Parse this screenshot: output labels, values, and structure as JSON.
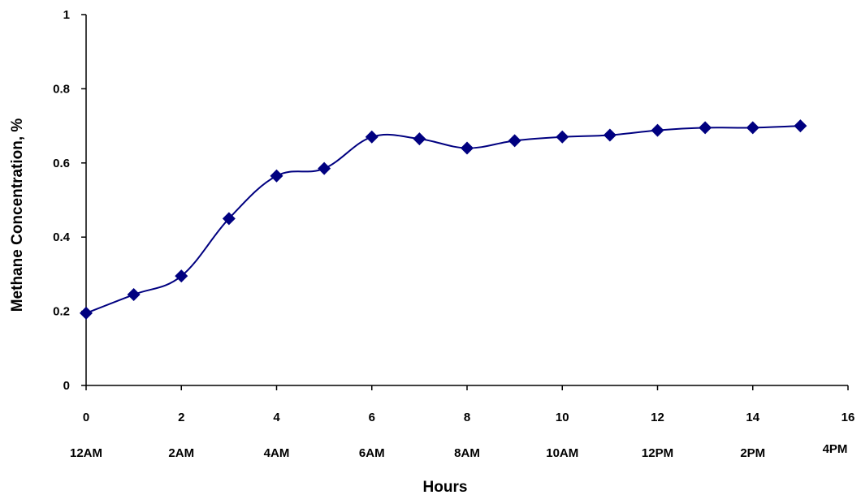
{
  "chart_data": {
    "type": "line",
    "xlabel": "Hours",
    "ylabel": "Methane Concentration, %",
    "xlim": [
      0,
      16
    ],
    "ylim": [
      0,
      1
    ],
    "x_ticks": [
      "0",
      "2",
      "4",
      "6",
      "8",
      "10",
      "12",
      "14",
      "16"
    ],
    "y_ticks": [
      "0",
      "0.2",
      "0.4",
      "0.6",
      "0.8",
      "1"
    ],
    "time_labels": [
      "12AM",
      "2AM",
      "4AM",
      "6AM",
      "8AM",
      "10AM",
      "12PM",
      "2PM",
      "4PM"
    ],
    "grid": false,
    "legend": "none",
    "series": [
      {
        "color": "#000080",
        "marker": "diamond",
        "smooth": true,
        "x": [
          0,
          1,
          2,
          3,
          4,
          5,
          6,
          7,
          8,
          9,
          10,
          11,
          12,
          13,
          14,
          15
        ],
        "y": [
          0.195,
          0.245,
          0.295,
          0.45,
          0.565,
          0.585,
          0.67,
          0.665,
          0.64,
          0.66,
          0.67,
          0.675,
          0.688,
          0.695,
          0.695,
          0.7
        ]
      }
    ]
  }
}
